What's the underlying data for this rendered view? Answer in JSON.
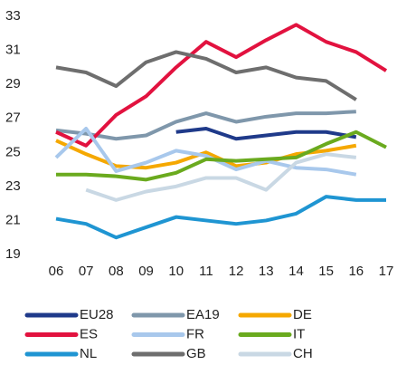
{
  "chart_data": {
    "type": "line",
    "categories": [
      "06",
      "07",
      "08",
      "09",
      "10",
      "11",
      "12",
      "13",
      "14",
      "15",
      "16",
      "17"
    ],
    "ylim": [
      19,
      33
    ],
    "yticks": [
      19,
      21,
      23,
      25,
      27,
      29,
      31,
      33
    ],
    "series": [
      {
        "name": "EU28",
        "color": "#1f3a8a",
        "values": [
          null,
          null,
          null,
          null,
          26.2,
          26.4,
          25.8,
          26.0,
          26.2,
          26.2,
          25.9,
          null
        ]
      },
      {
        "name": "EA19",
        "color": "#7f97ab",
        "values": [
          26.3,
          26.1,
          25.8,
          26.0,
          26.8,
          27.3,
          26.8,
          27.1,
          27.3,
          27.3,
          27.4,
          null
        ]
      },
      {
        "name": "DE",
        "color": "#f5a800",
        "values": [
          25.7,
          24.9,
          24.2,
          24.1,
          24.4,
          25.0,
          24.2,
          24.4,
          24.9,
          25.1,
          25.4,
          null
        ]
      },
      {
        "name": "ES",
        "color": "#e2123f",
        "values": [
          26.2,
          25.4,
          27.2,
          28.3,
          30.0,
          31.5,
          30.6,
          31.6,
          32.5,
          31.5,
          30.9,
          29.8
        ]
      },
      {
        "name": "FR",
        "color": "#a8c8ec",
        "values": [
          24.7,
          26.4,
          23.9,
          24.4,
          25.1,
          24.8,
          24.0,
          24.5,
          24.1,
          24.0,
          23.7,
          null
        ]
      },
      {
        "name": "IT",
        "color": "#6aaa1e",
        "values": [
          23.7,
          23.7,
          23.6,
          23.4,
          23.8,
          24.6,
          24.5,
          24.6,
          24.7,
          25.5,
          26.2,
          25.3
        ]
      },
      {
        "name": "NL",
        "color": "#1f95d2",
        "values": [
          21.1,
          20.8,
          20.0,
          20.6,
          21.2,
          21.0,
          20.8,
          21.0,
          21.4,
          22.4,
          22.2,
          22.2
        ]
      },
      {
        "name": "GB",
        "color": "#6e6e6e",
        "values": [
          30.0,
          29.7,
          28.9,
          30.3,
          30.9,
          30.5,
          29.7,
          30.0,
          29.4,
          29.2,
          28.1,
          null
        ]
      },
      {
        "name": "CH",
        "color": "#c9d8e4",
        "values": [
          null,
          22.8,
          22.2,
          22.7,
          23.0,
          23.5,
          23.5,
          22.8,
          24.4,
          24.9,
          24.7,
          null
        ]
      }
    ]
  }
}
